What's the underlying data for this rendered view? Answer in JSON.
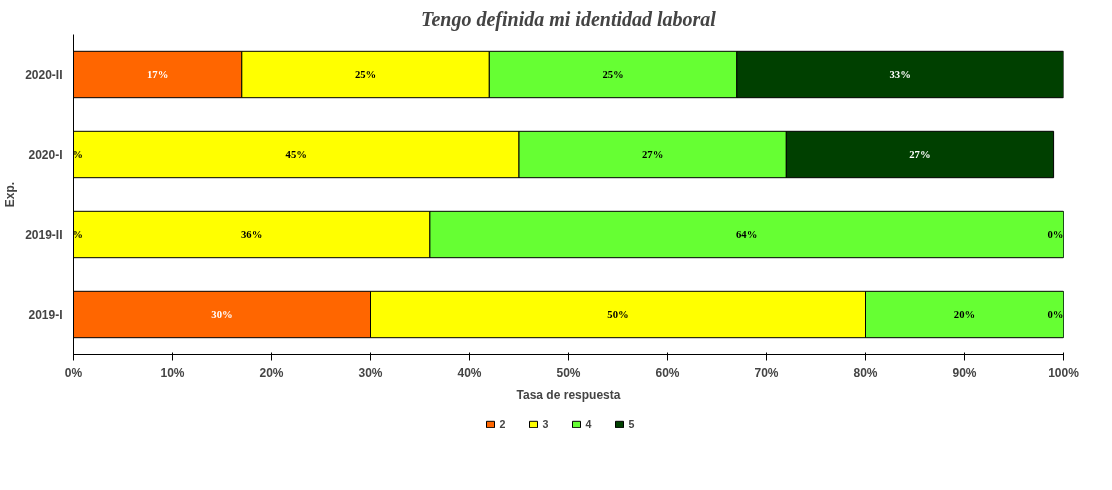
{
  "chart_data": {
    "type": "bar",
    "orientation": "horizontal",
    "stacked": true,
    "title": "Tengo definida mi identidad laboral",
    "xlabel": "Tasa de respuesta",
    "ylabel": "Exp.",
    "categories": [
      "2020-II",
      "2020-I",
      "2019-II",
      "2019-I"
    ],
    "series": [
      {
        "name": "2",
        "color": "#ff6600",
        "values": [
          17,
          0,
          0,
          30
        ],
        "value_labels": [
          "17%",
          "%",
          "%",
          "30%"
        ]
      },
      {
        "name": "3",
        "color": "#ffff00",
        "values": [
          25,
          45,
          36,
          50
        ],
        "value_labels": [
          "25%",
          "45%",
          "36%",
          "50%"
        ]
      },
      {
        "name": "4",
        "color": "#66ff33",
        "values": [
          25,
          27,
          64,
          20
        ],
        "value_labels": [
          "25%",
          "27%",
          "64%",
          "20%"
        ]
      },
      {
        "name": "5",
        "color": "#004000",
        "values": [
          33,
          27,
          0,
          0
        ],
        "value_labels": [
          "33%",
          "27%",
          "0%",
          "0%"
        ]
      }
    ],
    "xlim": [
      0,
      100
    ],
    "xticks": [
      {
        "value": 0,
        "label": "0%"
      },
      {
        "value": 10,
        "label": "10%"
      },
      {
        "value": 20,
        "label": "20%"
      },
      {
        "value": 30,
        "label": "30%"
      },
      {
        "value": 40,
        "label": "40%"
      },
      {
        "value": 50,
        "label": "50%"
      },
      {
        "value": 60,
        "label": "60%"
      },
      {
        "value": 70,
        "label": "70%"
      },
      {
        "value": 80,
        "label": "80%"
      },
      {
        "value": 90,
        "label": "90%"
      },
      {
        "value": 100,
        "label": "100%"
      }
    ],
    "legend": "bottom"
  }
}
